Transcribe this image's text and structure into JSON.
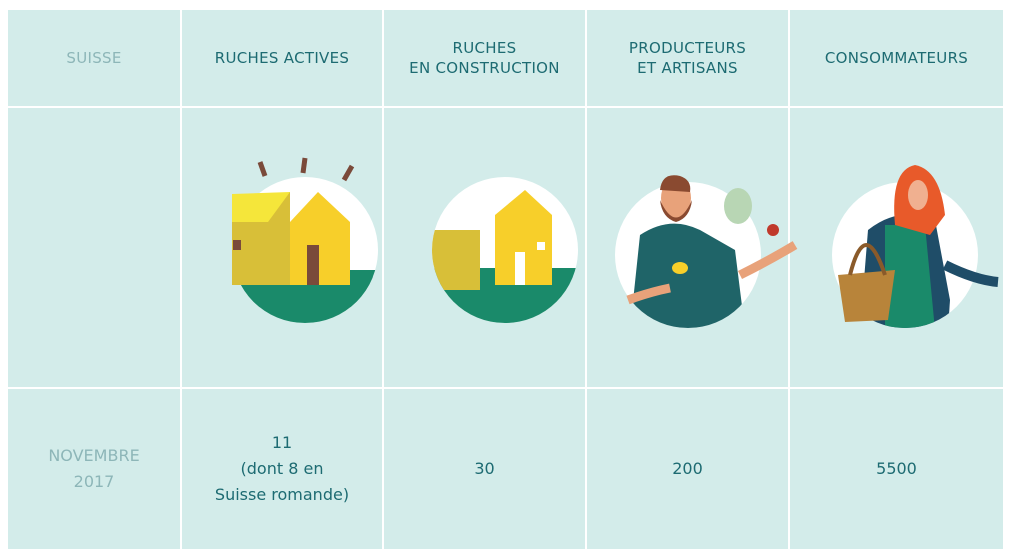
{
  "table": {
    "header": [
      [
        "SUISSE"
      ],
      [
        "RUCHES ACTIVES"
      ],
      [
        "RUCHES",
        "EN CONSTRUCTION"
      ],
      [
        "PRODUCTEURS",
        "ET ARTISANS"
      ],
      [
        "CONSOMMATEURS"
      ]
    ],
    "rows": [
      [
        [
          "NOVEMBRE",
          "2017"
        ],
        [
          "11",
          "(dont 8 en",
          "Suisse romande)"
        ],
        [
          "30"
        ],
        [
          "200"
        ],
        [
          "5500"
        ]
      ]
    ]
  }
}
